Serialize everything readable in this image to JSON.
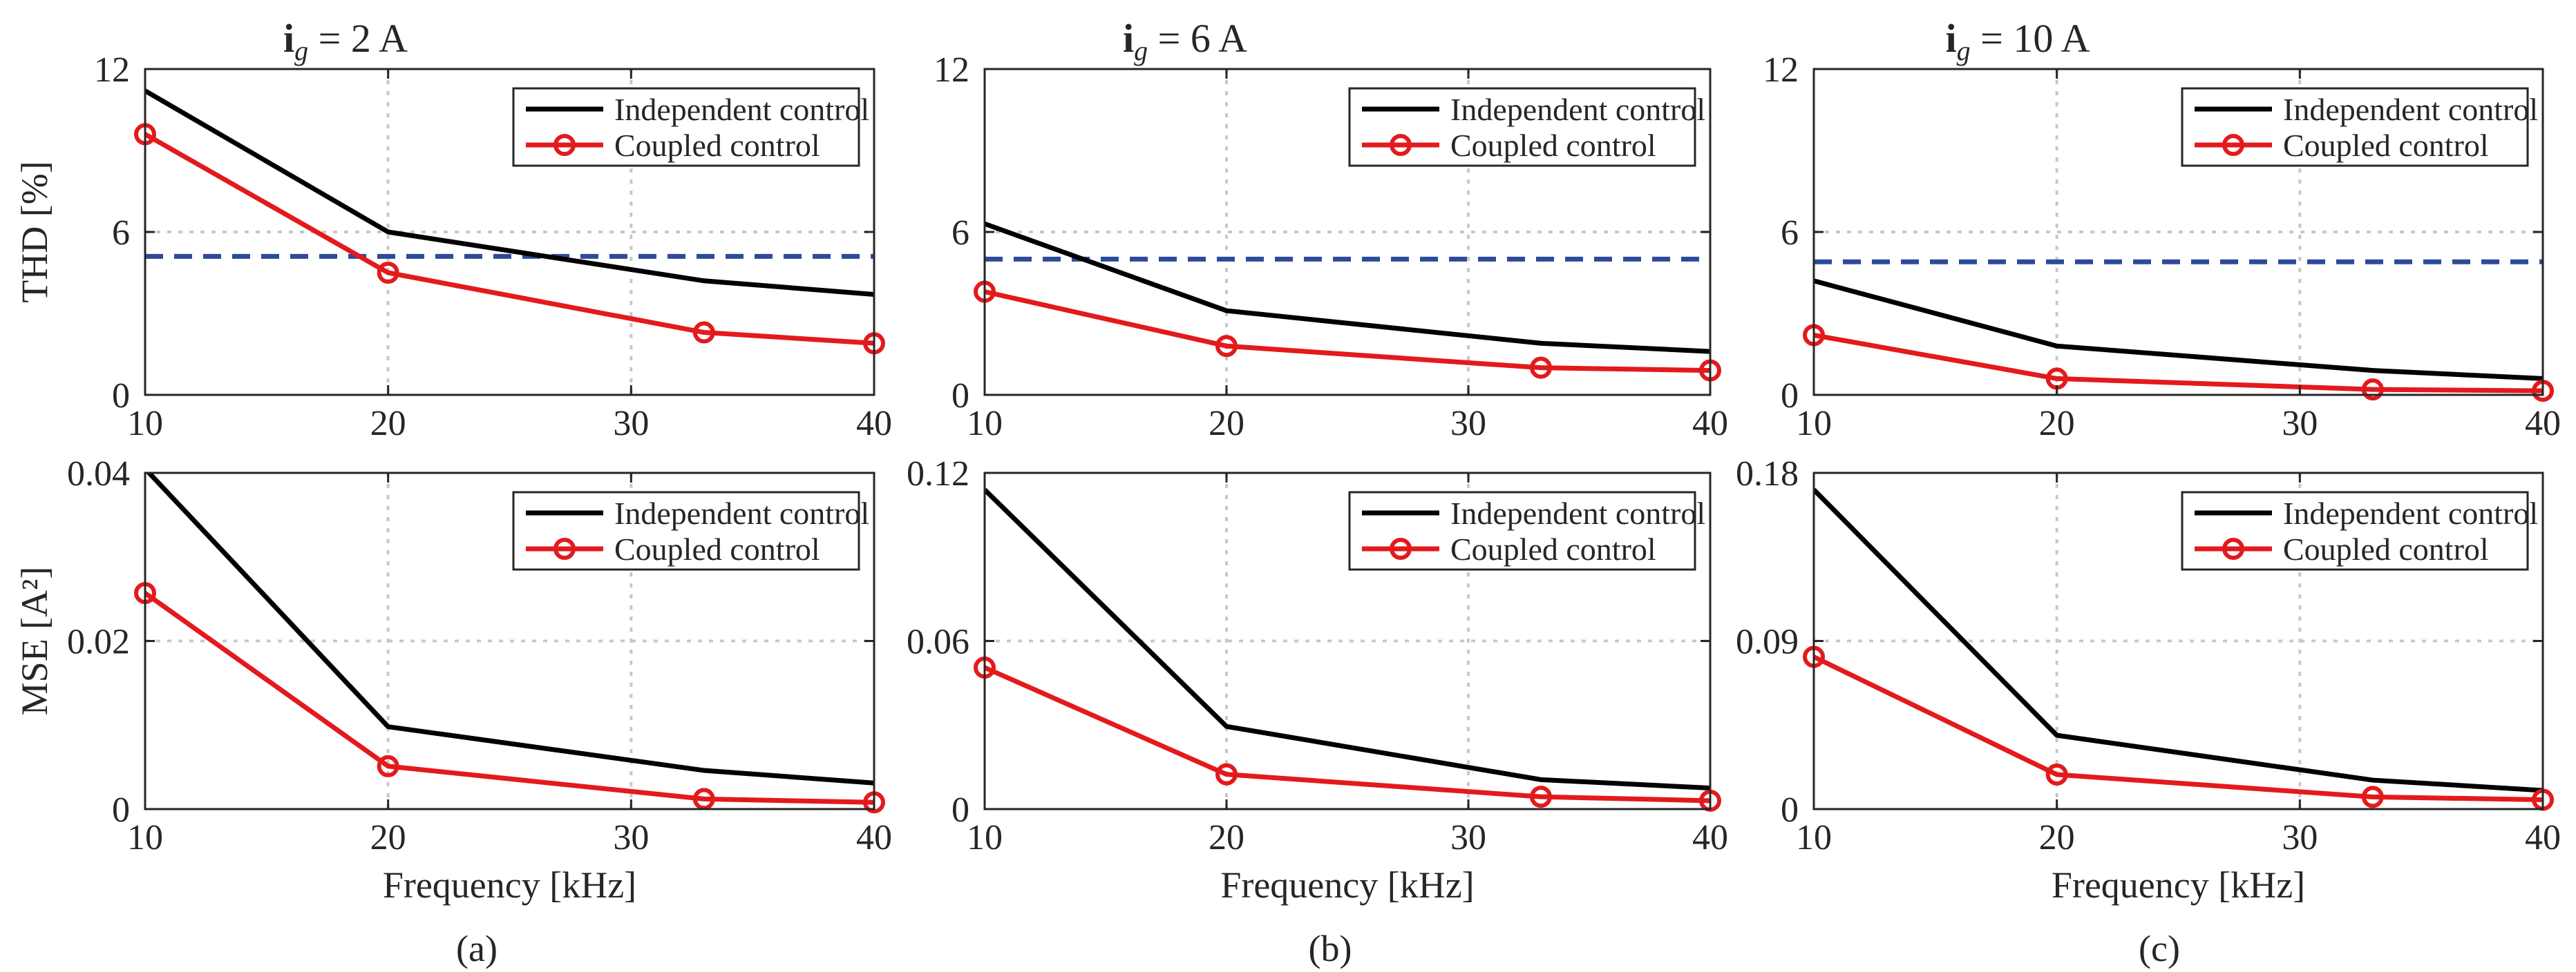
{
  "figure": {
    "titles": [
      "2 A",
      "6 A",
      "10 A"
    ],
    "title_symbol": "i",
    "title_subscript": "g",
    "title_relation": " = ",
    "captions": [
      "(a)",
      "(b)",
      "(c)"
    ],
    "colors": {
      "independent": "#000000",
      "coupled": "#e31a1c",
      "limit": "#2d4a9a",
      "axis": "#262626",
      "grid": "#c8c8c8"
    }
  },
  "chart_data": [
    {
      "type": "line",
      "panel": "a",
      "row": "thd",
      "title": "ig = 2 A",
      "xlabel": "",
      "ylabel": "THD [%]",
      "xlim": [
        10,
        40
      ],
      "ylim": [
        0,
        12
      ],
      "xticks": [
        "10",
        "20",
        "30",
        "40"
      ],
      "yticks": [
        "0",
        "6",
        "12"
      ],
      "x": [
        10,
        20,
        33,
        40
      ],
      "series": [
        {
          "name": "Independent control",
          "values": [
            11.2,
            6.0,
            4.2,
            3.7
          ]
        },
        {
          "name": "Coupled control",
          "values": [
            9.6,
            4.5,
            2.3,
            1.9
          ]
        }
      ],
      "reference_line": 5.1,
      "legend": [
        "Independent control",
        "Coupled control"
      ],
      "legend_position": "top-right"
    },
    {
      "type": "line",
      "panel": "b",
      "row": "thd",
      "title": "ig = 6 A",
      "xlabel": "",
      "ylabel": "",
      "xlim": [
        10,
        40
      ],
      "ylim": [
        0,
        12
      ],
      "xticks": [
        "10",
        "20",
        "30",
        "40"
      ],
      "yticks": [
        "0",
        "6",
        "12"
      ],
      "x": [
        10,
        20,
        33,
        40
      ],
      "series": [
        {
          "name": "Independent control",
          "values": [
            6.3,
            3.1,
            1.9,
            1.6
          ]
        },
        {
          "name": "Coupled control",
          "values": [
            3.8,
            1.8,
            1.0,
            0.9
          ]
        }
      ],
      "reference_line": 5.0,
      "legend": [
        "Independent control",
        "Coupled control"
      ],
      "legend_position": "top-right"
    },
    {
      "type": "line",
      "panel": "c",
      "row": "thd",
      "title": "ig = 10 A",
      "xlabel": "",
      "ylabel": "",
      "xlim": [
        10,
        40
      ],
      "ylim": [
        0,
        12
      ],
      "xticks": [
        "10",
        "20",
        "30",
        "40"
      ],
      "yticks": [
        "0",
        "6",
        "12"
      ],
      "x": [
        10,
        20,
        33,
        40
      ],
      "series": [
        {
          "name": "Independent control",
          "values": [
            4.2,
            1.8,
            0.9,
            0.6
          ]
        },
        {
          "name": "Coupled control",
          "values": [
            2.2,
            0.6,
            0.2,
            0.15
          ]
        }
      ],
      "reference_line": 4.9,
      "legend": [
        "Independent control",
        "Coupled control"
      ],
      "legend_position": "top-right"
    },
    {
      "type": "line",
      "panel": "a",
      "row": "mse",
      "title": "",
      "xlabel": "Frequency [kHz]",
      "ylabel": "MSE [A²]",
      "xlim": [
        10,
        40
      ],
      "ylim": [
        0,
        0.04
      ],
      "xticks": [
        "10",
        "20",
        "30",
        "40"
      ],
      "yticks": [
        "0",
        "0.02",
        "0.04"
      ],
      "x": [
        10,
        20,
        33,
        40
      ],
      "series": [
        {
          "name": "Independent control",
          "values": [
            0.0405,
            0.0098,
            0.0046,
            0.0031
          ]
        },
        {
          "name": "Coupled control",
          "values": [
            0.0257,
            0.0051,
            0.0012,
            0.0008
          ]
        }
      ],
      "legend": [
        "Independent control",
        "Coupled control"
      ],
      "legend_position": "top-right"
    },
    {
      "type": "line",
      "panel": "b",
      "row": "mse",
      "title": "",
      "xlabel": "Frequency [kHz]",
      "ylabel": "",
      "xlim": [
        10,
        40
      ],
      "ylim": [
        0,
        0.12
      ],
      "xticks": [
        "10",
        "20",
        "30",
        "40"
      ],
      "yticks": [
        "0",
        "0.06",
        "0.12"
      ],
      "x": [
        10,
        20,
        33,
        40
      ],
      "series": [
        {
          "name": "Independent control",
          "values": [
            0.114,
            0.0295,
            0.0105,
            0.0075
          ]
        },
        {
          "name": "Coupled control",
          "values": [
            0.0505,
            0.0124,
            0.0044,
            0.003
          ]
        }
      ],
      "legend": [
        "Independent control",
        "Coupled control"
      ],
      "legend_position": "top-right"
    },
    {
      "type": "line",
      "panel": "c",
      "row": "mse",
      "title": "",
      "xlabel": "Frequency [kHz]",
      "ylabel": "",
      "xlim": [
        10,
        40
      ],
      "ylim": [
        0,
        0.18
      ],
      "xticks": [
        "10",
        "20",
        "30",
        "40"
      ],
      "yticks": [
        "0",
        "0.09",
        "0.18"
      ],
      "x": [
        10,
        20,
        33,
        40
      ],
      "series": [
        {
          "name": "Independent control",
          "values": [
            0.171,
            0.0395,
            0.0155,
            0.01
          ]
        },
        {
          "name": "Coupled control",
          "values": [
            0.0815,
            0.0185,
            0.0065,
            0.005
          ]
        }
      ],
      "legend": [
        "Independent control",
        "Coupled control"
      ],
      "legend_position": "top-right"
    }
  ]
}
